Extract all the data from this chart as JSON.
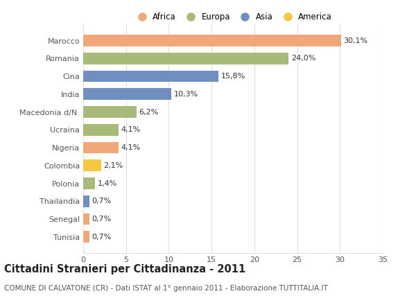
{
  "categories": [
    "Tunisia",
    "Senegal",
    "Thailandia",
    "Polonia",
    "Colombia",
    "Nigeria",
    "Ucraina",
    "Macedonia d/N.",
    "India",
    "Cina",
    "Romania",
    "Marocco"
  ],
  "values": [
    0.7,
    0.7,
    0.7,
    1.4,
    2.1,
    4.1,
    4.1,
    6.2,
    10.3,
    15.8,
    24.0,
    30.1
  ],
  "labels": [
    "0,7%",
    "0,7%",
    "0,7%",
    "1,4%",
    "2,1%",
    "4,1%",
    "4,1%",
    "6,2%",
    "10,3%",
    "15,8%",
    "24,0%",
    "30,1%"
  ],
  "colors": [
    "#f0a878",
    "#f0a878",
    "#6e8fc0",
    "#a8ba7a",
    "#f5c842",
    "#f0a878",
    "#a8ba7a",
    "#a8ba7a",
    "#6e8fc0",
    "#6e8fc0",
    "#a8ba7a",
    "#f0a878"
  ],
  "legend_labels": [
    "Africa",
    "Europa",
    "Asia",
    "America"
  ],
  "legend_colors": [
    "#f0a878",
    "#a8ba7a",
    "#6e8fc0",
    "#f5c842"
  ],
  "title": "Cittadini Stranieri per Cittadinanza - 2011",
  "subtitle": "COMUNE DI CALVATONE (CR) - Dati ISTAT al 1° gennaio 2011 - Elaborazione TUTTITALIA.IT",
  "xlim": [
    0,
    35
  ],
  "xticks": [
    0,
    5,
    10,
    15,
    20,
    25,
    30,
    35
  ],
  "background_color": "#ffffff",
  "grid_color": "#dddddd",
  "bar_height": 0.65,
  "title_fontsize": 10.5,
  "subtitle_fontsize": 7.5,
  "label_fontsize": 8,
  "tick_fontsize": 8,
  "legend_fontsize": 8.5
}
